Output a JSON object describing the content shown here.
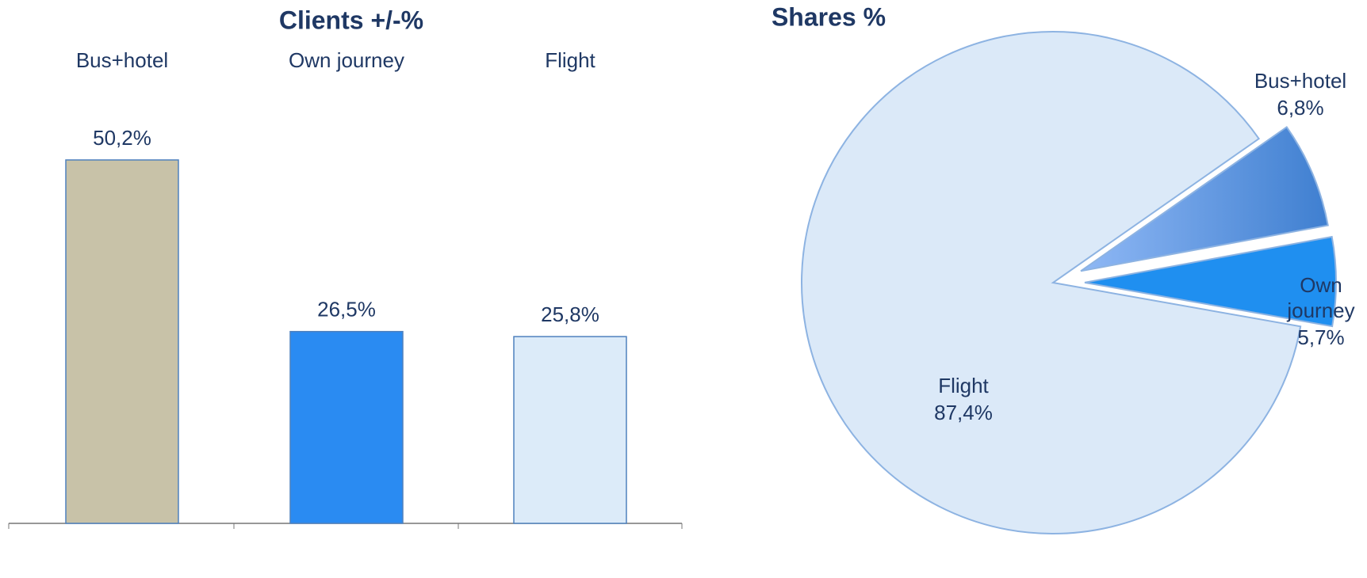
{
  "chart_data": [
    {
      "type": "bar",
      "title": "Clients +/-%",
      "categories": [
        "Bus+hotel",
        "Own journey",
        "Flight"
      ],
      "values": [
        50.2,
        26.5,
        25.8
      ],
      "value_labels": [
        "50,2%",
        "26,5%",
        "25,8%"
      ],
      "colors": [
        "#c8c2a8",
        "#2a8bf2",
        "#dcebf9"
      ]
    },
    {
      "type": "pie",
      "title": "Shares %",
      "categories": [
        "Bus+hotel",
        "Own journey",
        "Flight"
      ],
      "values": [
        6.8,
        5.7,
        87.4
      ],
      "value_labels": [
        "6,8%",
        "5,7%",
        "87,4%"
      ],
      "colors": [
        "#6a9ee6",
        "#1f8ff0",
        "#dbe9f8"
      ]
    }
  ]
}
